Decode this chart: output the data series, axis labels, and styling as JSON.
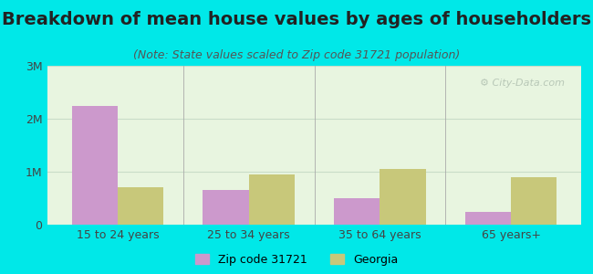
{
  "title": "Breakdown of mean house values by ages of householders",
  "subtitle": "(Note: State values scaled to Zip code 31721 population)",
  "categories": [
    "15 to 24 years",
    "25 to 34 years",
    "35 to 64 years",
    "65 years+"
  ],
  "zip_values": [
    2250000,
    650000,
    500000,
    250000
  ],
  "state_values": [
    700000,
    950000,
    1050000,
    900000
  ],
  "zip_color": "#cc99cc",
  "state_color": "#c8c87a",
  "background_outer": "#00e8e8",
  "background_inner": "#e8f5e0",
  "ylim": [
    0,
    3000000
  ],
  "yticks": [
    0,
    1000000,
    2000000,
    3000000
  ],
  "ytick_labels": [
    "0",
    "1M",
    "2M",
    "3M"
  ],
  "legend_zip_label": "Zip code 31721",
  "legend_state_label": "Georgia",
  "bar_width": 0.35,
  "title_fontsize": 14,
  "subtitle_fontsize": 9,
  "watermark_text": "⚙ City-Data.com",
  "watermark_color": "#b0c0b0"
}
